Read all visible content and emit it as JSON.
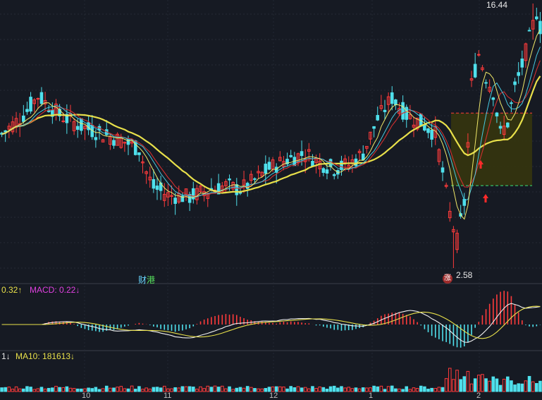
{
  "chart_data": [
    {
      "type": "candlestick",
      "panel": "price",
      "price_high_label": "16.44",
      "price_low_label": "2.58",
      "news_label": {
        "prefix": "财",
        "suffix": "港"
      },
      "low_badge": "涨",
      "xticks": [
        "10",
        "11",
        "12",
        "1",
        "2"
      ],
      "ma_colors": {
        "ma5": "#f0f0f0",
        "ma10": "#e8e04a",
        "ma20": "#e040e0",
        "ma60": "#e8e04a"
      },
      "up_color": "#ff3b3b",
      "down_color": "#4fe0ec",
      "highlight_box": {
        "from": 10.7,
        "to": 6.9
      }
    },
    {
      "type": "line",
      "panel": "macd",
      "legend_prefix": "0.32↑",
      "macd_label": "MACD: 0.22↓"
    },
    {
      "type": "bar",
      "panel": "volume",
      "legend_prefix": "1↓",
      "ma10_label": "MA10: 181613↓"
    }
  ],
  "colors": {
    "background": "#161a23",
    "grid": "#2a2f3a",
    "panel_border": "#3a3f4a",
    "box_fill": "#3a3a10"
  }
}
